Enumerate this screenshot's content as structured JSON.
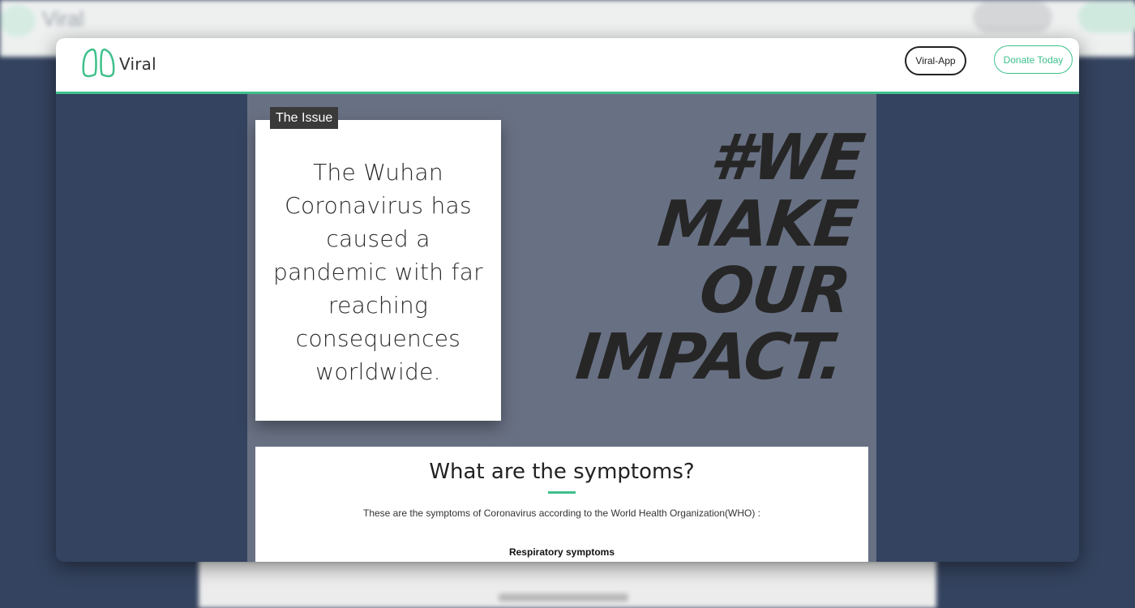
{
  "navbar": {
    "brand": "Viral",
    "app_button": "Viral-App",
    "donate_button": "Donate Today",
    "accent_color": "#3ec08b"
  },
  "issue": {
    "tag": "The Issue",
    "text": "The Wuhan Coronavirus has caused a pandemic with far reaching consequences worldwide."
  },
  "slogan": {
    "lines": [
      "#WE",
      "MAKE",
      "OUR",
      "IMPACT."
    ]
  },
  "symptoms": {
    "title": "What are the symptoms?",
    "description": "These are the symptoms of Coronavirus according to the World Health Organization(WHO) :",
    "subheading": "Respiratory symptoms"
  },
  "icons": {
    "logo": "lungs-icon"
  }
}
